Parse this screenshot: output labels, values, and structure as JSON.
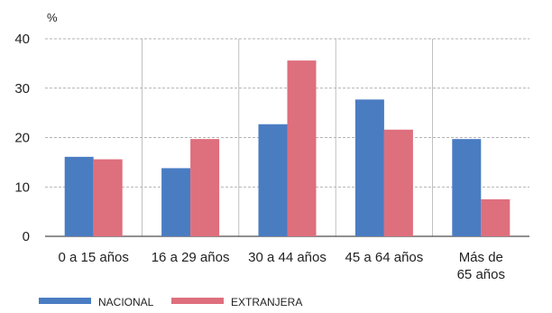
{
  "chart_data": {
    "type": "bar",
    "unit": "%",
    "categories": [
      [
        "0 a 15 años"
      ],
      [
        "16 a 29 años"
      ],
      [
        "30 a 44 años"
      ],
      [
        "45 a 64 años"
      ],
      [
        "Más de",
        "65 años"
      ]
    ],
    "series": [
      {
        "name": "NACIONAL",
        "color": "#4a7cc2",
        "values": [
          16.1,
          13.8,
          22.7,
          27.7,
          19.7
        ]
      },
      {
        "name": "EXTRANJERA",
        "color": "#de6f7d",
        "values": [
          15.6,
          19.7,
          35.6,
          21.6,
          7.5
        ]
      }
    ],
    "ylim": [
      0,
      40
    ],
    "yticks": [
      0,
      10,
      20,
      30,
      40
    ],
    "grid": true,
    "legend": "bottom-left"
  }
}
